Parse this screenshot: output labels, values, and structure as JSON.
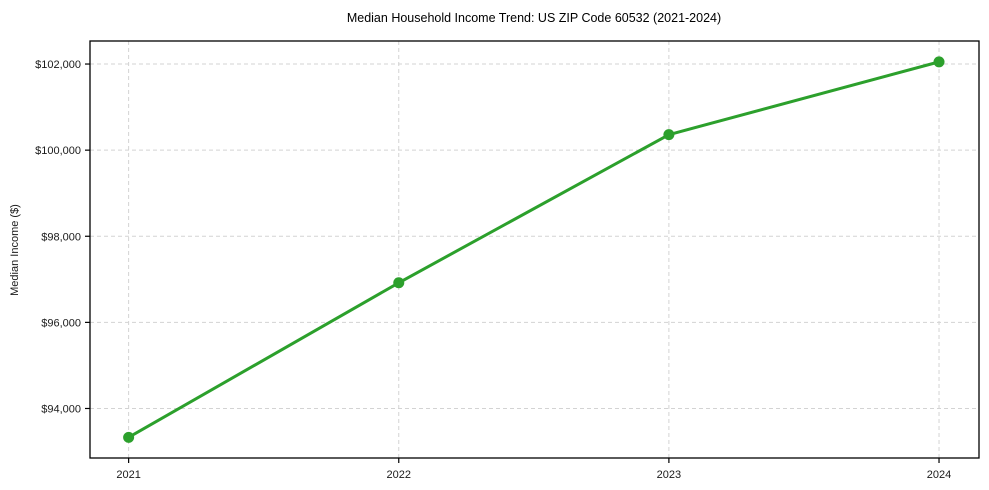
{
  "chart_data": {
    "type": "line",
    "title": "Median Household Income Trend: US ZIP Code 60532 (2021-2024)",
    "xlabel": "",
    "ylabel": "Median Income ($)",
    "x": [
      2021,
      2022,
      2023,
      2024
    ],
    "x_tick_labels": [
      "2021",
      "2022",
      "2023",
      "2024"
    ],
    "values": [
      93330,
      96920,
      100360,
      102050
    ],
    "y_ticks": [
      94000,
      96000,
      98000,
      100000,
      102000
    ],
    "y_tick_labels": [
      "$94,000",
      "$96,000",
      "$98,000",
      "$100,000",
      "$102,000"
    ],
    "xlim": [
      2020.857,
      2024.148
    ],
    "ylim": [
      92850,
      102535
    ],
    "grid": true,
    "grid_style": "dashed",
    "legend": "none",
    "line_color": "#2ca02c",
    "marker_color": "#2ca02c",
    "marker": "circle",
    "background_color": "#ffffff",
    "grid_color": "#d3d3d3",
    "border_color": "#000000"
  }
}
